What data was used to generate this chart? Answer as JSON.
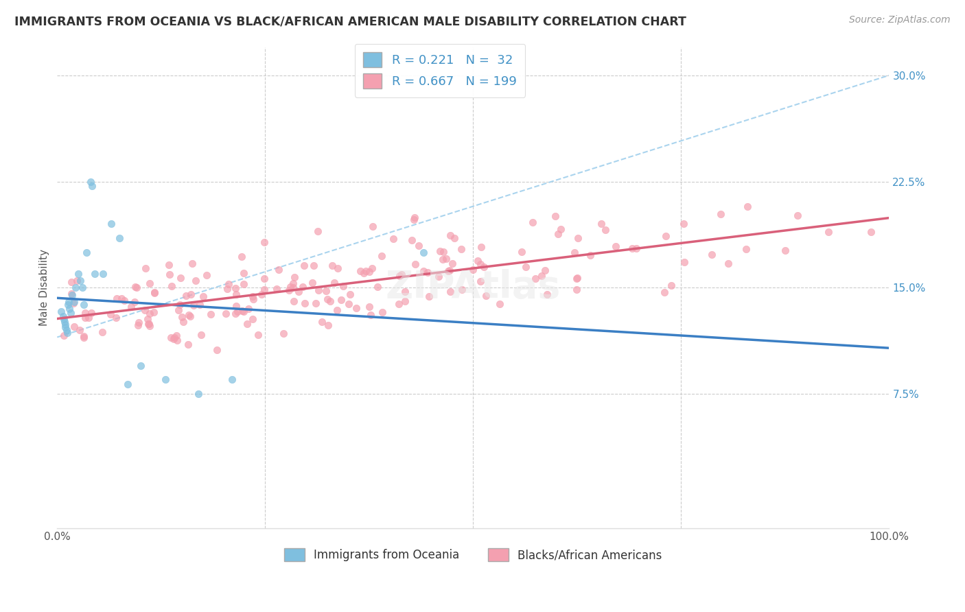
{
  "title": "IMMIGRANTS FROM OCEANIA VS BLACK/AFRICAN AMERICAN MALE DISABILITY CORRELATION CHART",
  "source": "Source: ZipAtlas.com",
  "ylabel": "Male Disability",
  "y_ticks": [
    "7.5%",
    "15.0%",
    "22.5%",
    "30.0%"
  ],
  "y_tick_vals": [
    0.075,
    0.15,
    0.225,
    0.3
  ],
  "legend_label1": "Immigrants from Oceania",
  "legend_label2": "Blacks/African Americans",
  "r1": 0.221,
  "n1": 32,
  "r2": 0.667,
  "n2": 199,
  "color1": "#7fbfdf",
  "color2": "#f4a0b0",
  "line1_color": "#3b7fc4",
  "line2_color": "#d9607a",
  "dash_color": "#aad4ee",
  "background_color": "#ffffff",
  "grid_color": "#cccccc",
  "xlim": [
    0.0,
    1.0
  ],
  "ylim": [
    -0.02,
    0.32
  ],
  "title_color": "#333333",
  "source_color": "#999999",
  "ytick_color": "#4292c6"
}
